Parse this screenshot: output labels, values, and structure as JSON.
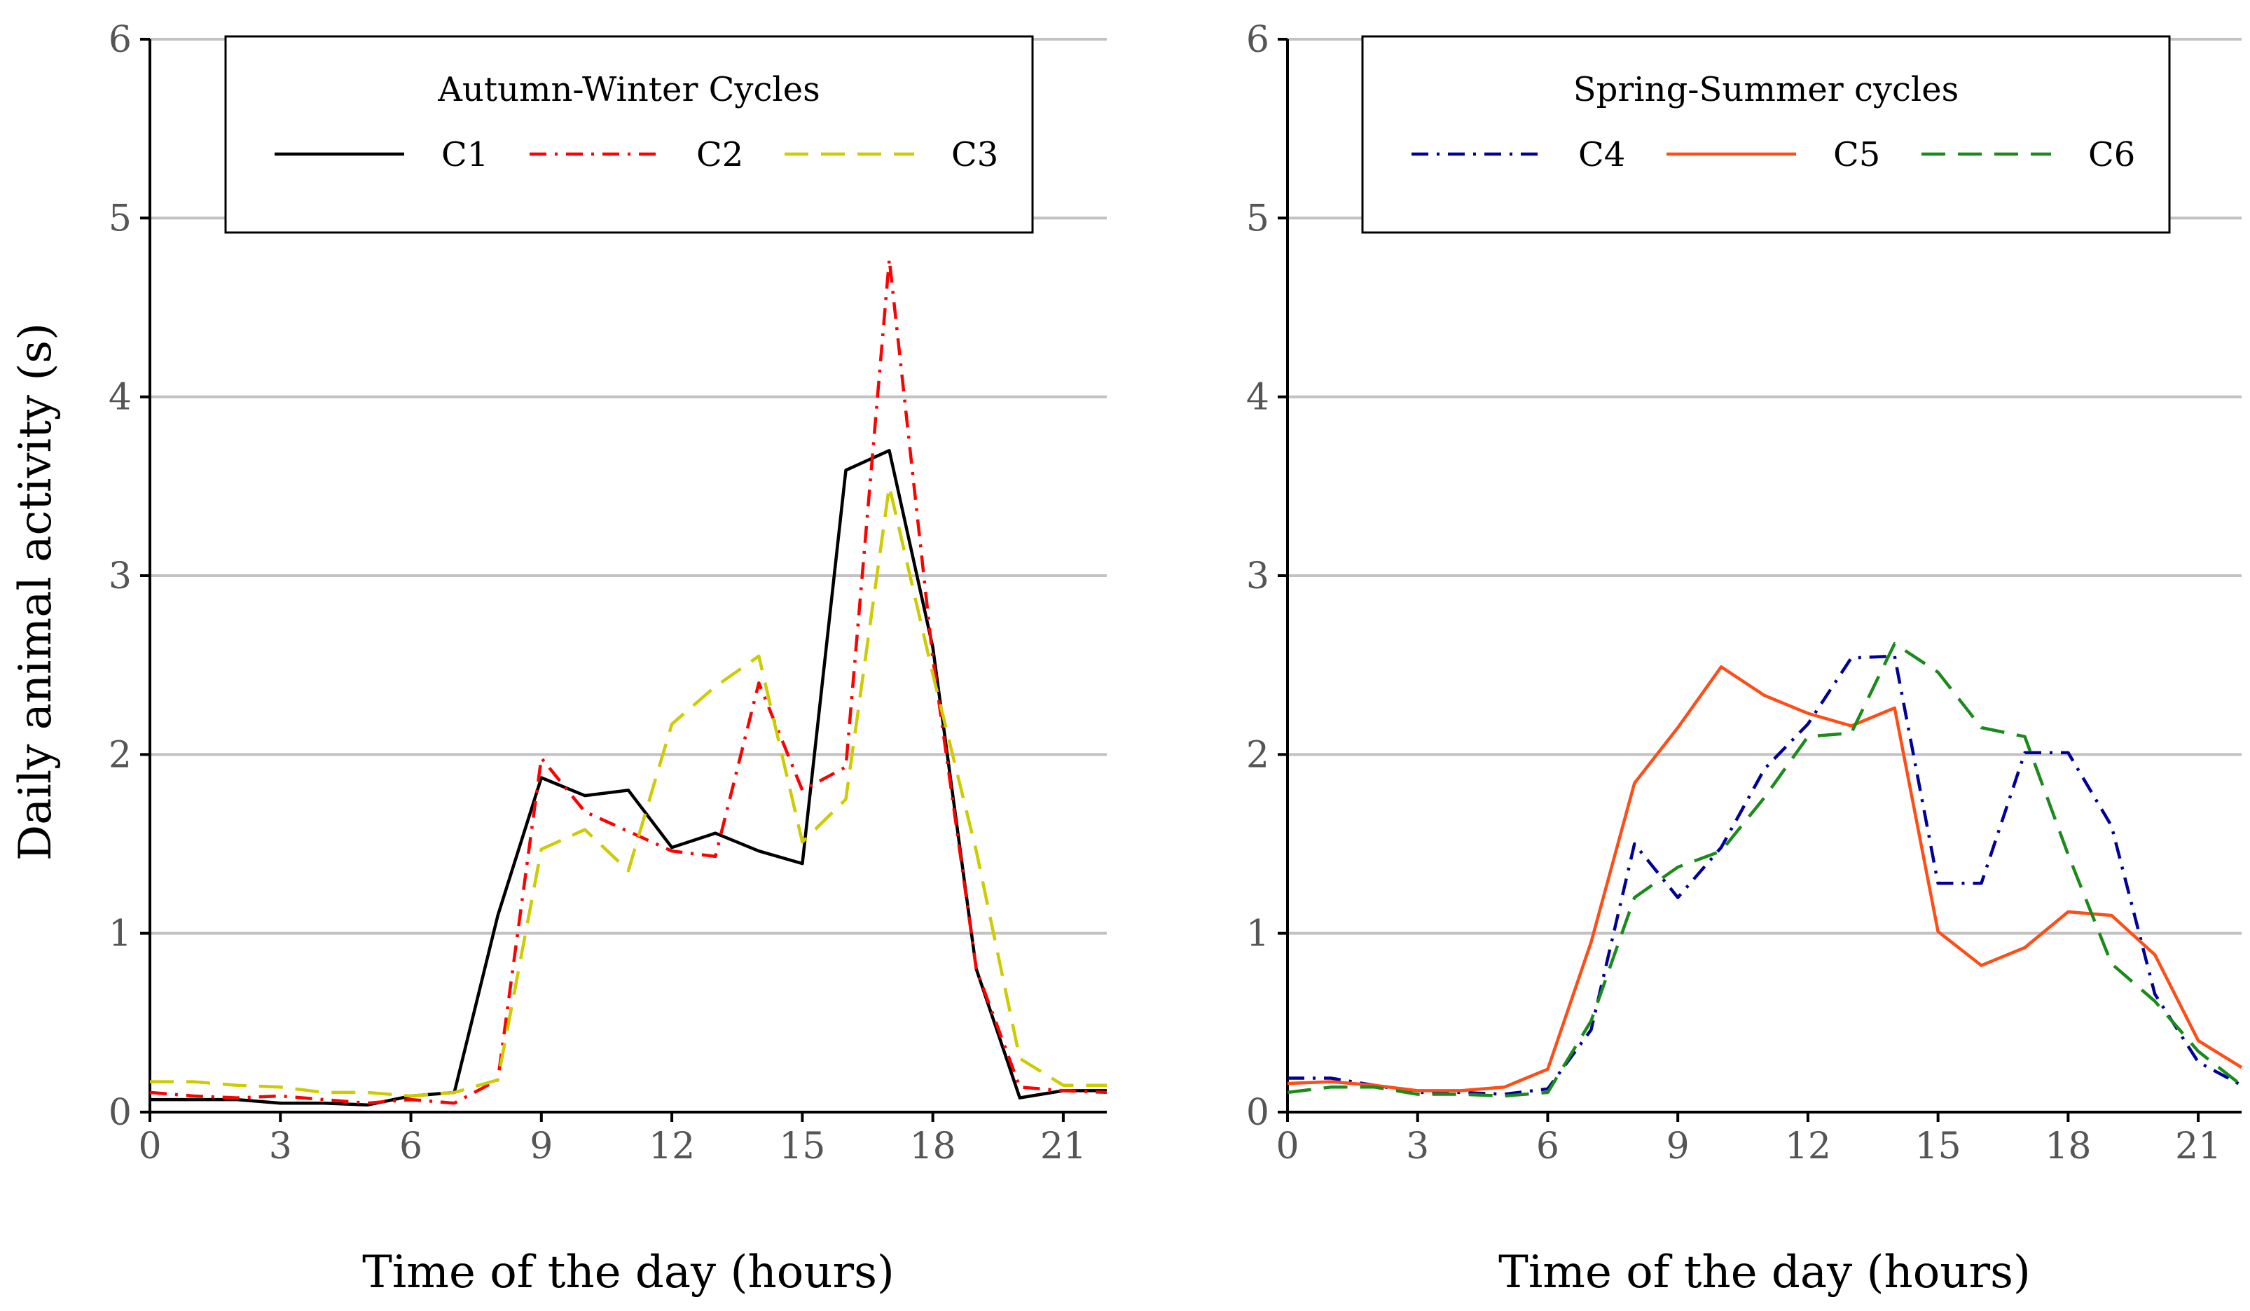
{
  "figure": {
    "ylabel": "Daily animal activity (s)"
  },
  "chart_data": [
    {
      "type": "line",
      "xlabel": "Time of the day (hours)",
      "ylabel": "Daily animal activity (s)",
      "xlim": [
        0,
        22
      ],
      "ylim": [
        0,
        6
      ],
      "xticks": [
        0,
        3,
        6,
        9,
        12,
        15,
        18,
        21
      ],
      "yticks": [
        0,
        1,
        2,
        3,
        4,
        5,
        6
      ],
      "grid": "horizontal",
      "legend": {
        "title": "Autumn-Winter Cycles",
        "position": "top-left"
      },
      "x": [
        0,
        1,
        2,
        3,
        4,
        5,
        6,
        7,
        8,
        9,
        10,
        11,
        12,
        13,
        14,
        15,
        16,
        17,
        18,
        19,
        20,
        21,
        22
      ],
      "series": [
        {
          "name": "C1",
          "color": "#000000",
          "dash": "solid",
          "values": [
            0.07,
            0.07,
            0.07,
            0.05,
            0.05,
            0.04,
            0.09,
            0.11,
            1.1,
            1.87,
            1.77,
            1.8,
            1.48,
            1.56,
            1.46,
            1.39,
            3.59,
            3.7,
            2.6,
            0.8,
            0.08,
            0.12,
            0.12
          ]
        },
        {
          "name": "C2",
          "color": "#ff0000",
          "dash": "dashdot",
          "values": [
            0.11,
            0.09,
            0.08,
            0.09,
            0.07,
            0.05,
            0.07,
            0.05,
            0.18,
            1.98,
            1.68,
            1.57,
            1.46,
            1.43,
            2.4,
            1.8,
            1.93,
            4.77,
            2.54,
            0.8,
            0.14,
            0.12,
            0.11
          ]
        },
        {
          "name": "C3",
          "color": "#cccc00",
          "dash": "dashed",
          "values": [
            0.17,
            0.17,
            0.15,
            0.14,
            0.11,
            0.11,
            0.09,
            0.11,
            0.18,
            1.47,
            1.58,
            1.35,
            2.17,
            2.38,
            2.55,
            1.51,
            1.75,
            3.5,
            2.45,
            1.46,
            0.3,
            0.15,
            0.15
          ]
        }
      ]
    },
    {
      "type": "line",
      "xlabel": "Time of the day (hours)",
      "ylabel": "",
      "xlim": [
        0,
        22
      ],
      "ylim": [
        0,
        6
      ],
      "xticks": [
        0,
        3,
        6,
        9,
        12,
        15,
        18,
        21
      ],
      "yticks": [
        0,
        1,
        2,
        3,
        4,
        5,
        6
      ],
      "grid": "horizontal",
      "legend": {
        "title": "Spring-Summer cycles",
        "position": "top-left"
      },
      "x": [
        0,
        1,
        2,
        3,
        4,
        5,
        6,
        7,
        8,
        9,
        10,
        11,
        12,
        13,
        14,
        15,
        16,
        17,
        18,
        19,
        20,
        21,
        22
      ],
      "series": [
        {
          "name": "C4",
          "color": "#000099",
          "dash": "dashdot",
          "values": [
            0.19,
            0.19,
            0.15,
            0.11,
            0.11,
            0.1,
            0.13,
            0.46,
            1.5,
            1.2,
            1.48,
            1.92,
            2.17,
            2.54,
            2.55,
            1.28,
            1.28,
            2.01,
            2.01,
            1.6,
            0.66,
            0.28,
            0.15
          ]
        },
        {
          "name": "C5",
          "color": "#ff4d17",
          "dash": "solid",
          "values": [
            0.16,
            0.17,
            0.15,
            0.12,
            0.12,
            0.14,
            0.24,
            0.95,
            1.84,
            2.15,
            2.49,
            2.33,
            2.23,
            2.16,
            2.26,
            1.01,
            0.82,
            0.92,
            1.12,
            1.1,
            0.88,
            0.4,
            0.25
          ]
        },
        {
          "name": "C6",
          "color": "#1a8a1a",
          "dash": "dashed",
          "values": [
            0.11,
            0.14,
            0.14,
            0.1,
            0.1,
            0.09,
            0.11,
            0.51,
            1.2,
            1.37,
            1.46,
            1.76,
            2.1,
            2.12,
            2.62,
            2.46,
            2.15,
            2.1,
            1.44,
            0.83,
            0.62,
            0.34,
            0.15
          ]
        }
      ]
    }
  ]
}
